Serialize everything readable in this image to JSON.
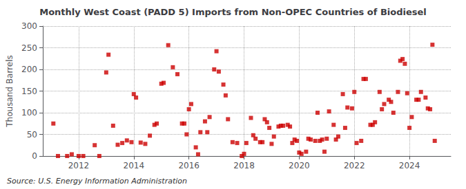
{
  "chart_data": {
    "type": "scatter",
    "title": "Monthly West Coast (PADD 5) Imports from Non-OPEC Countries of Biodiesel",
    "ylabel": "Thousand Barrels",
    "source": "Source: U.S. Energy Information Administration",
    "color": "#cc0000",
    "marker": "square",
    "grid": true,
    "xlim": [
      2010.7,
      2025.5
    ],
    "xticks": [
      2012,
      2014,
      2016,
      2018,
      2020,
      2022,
      2024
    ],
    "ylim": [
      0,
      300
    ],
    "yticks": [
      0,
      50,
      100,
      150,
      200,
      250,
      300
    ],
    "x": [
      2011.083,
      2011.25,
      2011.583,
      2011.75,
      2012.0,
      2012.167,
      2012.583,
      2012.75,
      2013.0,
      2013.083,
      2013.25,
      2013.417,
      2013.583,
      2013.75,
      2013.917,
      2014.0,
      2014.083,
      2014.25,
      2014.417,
      2014.583,
      2014.75,
      2014.833,
      2015.0,
      2015.083,
      2015.25,
      2015.417,
      2015.583,
      2015.75,
      2015.833,
      2015.917,
      2016.0,
      2016.083,
      2016.25,
      2016.333,
      2016.417,
      2016.583,
      2016.667,
      2016.75,
      2016.917,
      2017.0,
      2017.083,
      2017.25,
      2017.333,
      2017.417,
      2017.583,
      2017.75,
      2017.917,
      2018.0,
      2018.083,
      2018.25,
      2018.333,
      2018.417,
      2018.583,
      2018.667,
      2018.75,
      2018.833,
      2018.917,
      2019.0,
      2019.083,
      2019.25,
      2019.333,
      2019.417,
      2019.583,
      2019.667,
      2019.75,
      2019.833,
      2019.917,
      2020.0,
      2020.083,
      2020.25,
      2020.333,
      2020.417,
      2020.583,
      2020.667,
      2020.75,
      2020.833,
      2020.917,
      2021.0,
      2021.083,
      2021.25,
      2021.333,
      2021.417,
      2021.583,
      2021.667,
      2021.75,
      2021.917,
      2022.0,
      2022.083,
      2022.25,
      2022.333,
      2022.417,
      2022.583,
      2022.667,
      2022.75,
      2022.917,
      2023.0,
      2023.083,
      2023.25,
      2023.333,
      2023.417,
      2023.583,
      2023.667,
      2023.75,
      2023.833,
      2023.917,
      2024.0,
      2024.083,
      2024.25,
      2024.333,
      2024.417,
      2024.583,
      2024.667,
      2024.75,
      2024.833,
      2024.917
    ],
    "values": [
      75,
      0,
      0,
      4,
      0,
      0,
      25,
      0,
      193,
      234,
      70,
      26,
      30,
      36,
      32,
      143,
      135,
      31,
      28,
      47,
      72,
      75,
      167,
      169,
      256,
      205,
      189,
      75,
      75,
      50,
      108,
      120,
      20,
      4,
      55,
      80,
      55,
      90,
      200,
      242,
      195,
      165,
      140,
      85,
      32,
      30,
      0,
      5,
      30,
      88,
      48,
      40,
      32,
      32,
      85,
      78,
      65,
      28,
      45,
      68,
      70,
      70,
      72,
      68,
      30,
      38,
      35,
      8,
      5,
      10,
      40,
      38,
      35,
      100,
      35,
      38,
      10,
      40,
      103,
      72,
      38,
      45,
      143,
      65,
      112,
      110,
      148,
      30,
      35,
      178,
      178,
      72,
      72,
      78,
      148,
      108,
      120,
      130,
      125,
      100,
      148,
      220,
      224,
      213,
      145,
      65,
      90,
      130,
      130,
      148,
      135,
      110,
      108,
      257,
      35
    ]
  }
}
